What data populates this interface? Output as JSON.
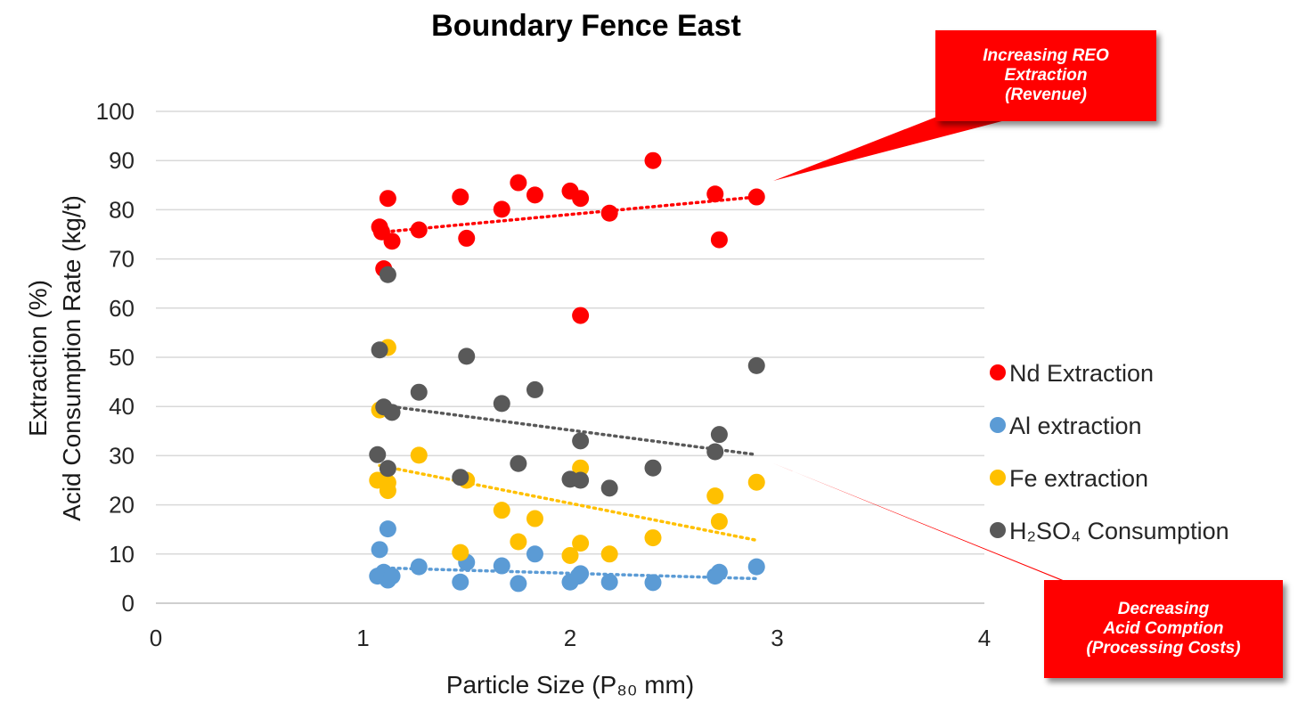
{
  "chart_data": {
    "type": "scatter",
    "title": "Boundary Fence East",
    "xlabel": "Particle Size (P₈₀ mm)",
    "ylabel_line1": "Extraction (%)",
    "ylabel_line2": "Acid Consumption Rate (kg/t)",
    "xlim": [
      0,
      4
    ],
    "ylim": [
      0,
      100
    ],
    "x_ticks": [
      "0",
      "1",
      "2",
      "3",
      "4"
    ],
    "y_ticks": [
      "0",
      "10",
      "20",
      "30",
      "40",
      "50",
      "60",
      "70",
      "80",
      "90",
      "100"
    ],
    "grid": "horizontal",
    "legend_position": "right",
    "series": [
      {
        "name": "Nd Extraction",
        "color": "#ff0000",
        "points": [
          [
            1.08,
            76.5
          ],
          [
            1.09,
            75.5
          ],
          [
            1.12,
            82.3
          ],
          [
            1.1,
            68.0
          ],
          [
            1.14,
            73.6
          ],
          [
            1.27,
            75.9
          ],
          [
            1.47,
            82.6
          ],
          [
            1.5,
            74.2
          ],
          [
            1.67,
            80.1
          ],
          [
            1.75,
            85.5
          ],
          [
            1.83,
            83.0
          ],
          [
            2.0,
            83.8
          ],
          [
            2.05,
            82.3
          ],
          [
            2.05,
            58.5
          ],
          [
            2.19,
            79.3
          ],
          [
            2.4,
            90.0
          ],
          [
            2.7,
            83.2
          ],
          [
            2.72,
            73.9
          ],
          [
            2.9,
            82.6
          ]
        ],
        "trend": [
          [
            1.08,
            75.4
          ],
          [
            2.9,
            82.6
          ]
        ]
      },
      {
        "name": "Al extraction",
        "color": "#5b9bd5",
        "points": [
          [
            1.07,
            5.5
          ],
          [
            1.08,
            10.9
          ],
          [
            1.1,
            6.3
          ],
          [
            1.12,
            15.1
          ],
          [
            1.12,
            4.7
          ],
          [
            1.14,
            5.5
          ],
          [
            1.27,
            7.4
          ],
          [
            1.47,
            4.3
          ],
          [
            1.5,
            8.3
          ],
          [
            1.67,
            7.6
          ],
          [
            1.75,
            4.0
          ],
          [
            1.83,
            10.0
          ],
          [
            2.0,
            4.3
          ],
          [
            2.04,
            5.5
          ],
          [
            2.05,
            6.0
          ],
          [
            2.19,
            4.3
          ],
          [
            2.4,
            4.2
          ],
          [
            2.7,
            5.5
          ],
          [
            2.72,
            6.3
          ],
          [
            2.9,
            7.4
          ]
        ],
        "trend": [
          [
            1.08,
            7.2
          ],
          [
            2.9,
            5.0
          ]
        ]
      },
      {
        "name": "Fe extraction",
        "color": "#ffc000",
        "points": [
          [
            1.07,
            25.0
          ],
          [
            1.08,
            39.3
          ],
          [
            1.12,
            52.0
          ],
          [
            1.12,
            22.9
          ],
          [
            1.12,
            24.5
          ],
          [
            1.27,
            30.1
          ],
          [
            1.47,
            10.3
          ],
          [
            1.5,
            25.0
          ],
          [
            1.67,
            18.9
          ],
          [
            1.75,
            12.5
          ],
          [
            1.83,
            17.2
          ],
          [
            2.0,
            9.7
          ],
          [
            2.05,
            12.2
          ],
          [
            2.05,
            27.5
          ],
          [
            2.19,
            10.0
          ],
          [
            2.4,
            13.3
          ],
          [
            2.7,
            21.8
          ],
          [
            2.72,
            16.6
          ],
          [
            2.9,
            24.6
          ]
        ],
        "trend": [
          [
            1.08,
            28.0
          ],
          [
            2.9,
            12.8
          ]
        ]
      },
      {
        "name": "H₂SO₄ Consumption",
        "color": "#595959",
        "points": [
          [
            1.07,
            30.2
          ],
          [
            1.08,
            51.5
          ],
          [
            1.1,
            39.9
          ],
          [
            1.12,
            27.4
          ],
          [
            1.12,
            66.8
          ],
          [
            1.14,
            38.8
          ],
          [
            1.27,
            42.9
          ],
          [
            1.47,
            25.6
          ],
          [
            1.5,
            50.2
          ],
          [
            1.67,
            40.6
          ],
          [
            1.75,
            28.4
          ],
          [
            1.83,
            43.4
          ],
          [
            2.0,
            25.2
          ],
          [
            2.05,
            33.0
          ],
          [
            2.05,
            25.0
          ],
          [
            2.19,
            23.4
          ],
          [
            2.4,
            27.5
          ],
          [
            2.7,
            30.8
          ],
          [
            2.72,
            34.3
          ],
          [
            2.9,
            48.3
          ]
        ],
        "trend": [
          [
            1.08,
            40.3
          ],
          [
            2.9,
            30.2
          ]
        ]
      }
    ]
  },
  "annotations": {
    "top": [
      "Increasing REO",
      "Extraction",
      "(Revenue)"
    ],
    "bottom": [
      "Decreasing",
      "Acid Comption",
      "(Processing Costs)"
    ]
  }
}
